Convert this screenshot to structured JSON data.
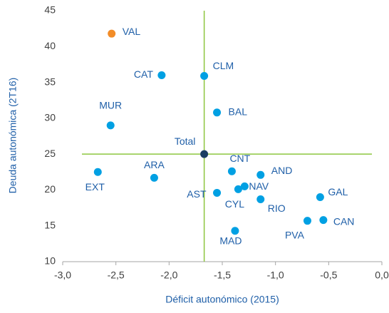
{
  "chart_data": {
    "type": "scatter",
    "x_label": "Déficit autonómico (2015)",
    "y_label": "Deuda autonómica (2T16)",
    "xlim": [
      -3.0,
      0.0
    ],
    "xticks": [
      {
        "value": -3.0,
        "label": "-3,0"
      },
      {
        "value": -2.5,
        "label": "-2,5"
      },
      {
        "value": -2.0,
        "label": "-2,0"
      },
      {
        "value": -1.5,
        "label": "-1,5"
      },
      {
        "value": -1.0,
        "label": "-1,0"
      },
      {
        "value": -0.5,
        "label": "-0,5"
      },
      {
        "value": 0.0,
        "label": "0,0"
      }
    ],
    "ylim": [
      10,
      45
    ],
    "yticks": [
      10,
      15,
      20,
      25,
      30,
      35,
      40,
      45
    ],
    "reference_lines": {
      "x": -1.67,
      "y": 25,
      "color": "#8dc63f"
    },
    "points": [
      {
        "label": "VAL",
        "x": -2.54,
        "y": 41.8,
        "color": "#f28c28"
      },
      {
        "label": "CAT",
        "x": -2.07,
        "y": 36.0,
        "color": "#00a0e3"
      },
      {
        "label": "CLM",
        "x": -1.67,
        "y": 35.9,
        "color": "#00a0e3"
      },
      {
        "label": "MUR",
        "x": -2.55,
        "y": 29.0,
        "color": "#00a0e3"
      },
      {
        "label": "BAL",
        "x": -1.55,
        "y": 30.8,
        "color": "#00a0e3"
      },
      {
        "label": "Total",
        "x": -1.67,
        "y": 25.0,
        "color": "#1b3d63"
      },
      {
        "label": "EXT",
        "x": -2.67,
        "y": 22.5,
        "color": "#00a0e3"
      },
      {
        "label": "ARA",
        "x": -2.14,
        "y": 21.7,
        "color": "#00a0e3"
      },
      {
        "label": "CNT",
        "x": -1.41,
        "y": 22.6,
        "color": "#00a0e3"
      },
      {
        "label": "AND",
        "x": -1.14,
        "y": 22.1,
        "color": "#00a0e3"
      },
      {
        "label": "AST",
        "x": -1.55,
        "y": 19.6,
        "color": "#00a0e3"
      },
      {
        "label": "NAV",
        "x": -1.29,
        "y": 20.5,
        "color": "#00a0e3"
      },
      {
        "label": "CYL",
        "x": -1.35,
        "y": 20.1,
        "color": "#00a0e3"
      },
      {
        "label": "RIO",
        "x": -1.14,
        "y": 18.7,
        "color": "#00a0e3"
      },
      {
        "label": "GAL",
        "x": -0.58,
        "y": 19.0,
        "color": "#00a0e3"
      },
      {
        "label": "CAN",
        "x": -0.55,
        "y": 15.8,
        "color": "#00a0e3"
      },
      {
        "label": "PVA",
        "x": -0.7,
        "y": 15.7,
        "color": "#00a0e3"
      },
      {
        "label": "MAD",
        "x": -1.38,
        "y": 14.3,
        "color": "#00a0e3"
      }
    ]
  }
}
